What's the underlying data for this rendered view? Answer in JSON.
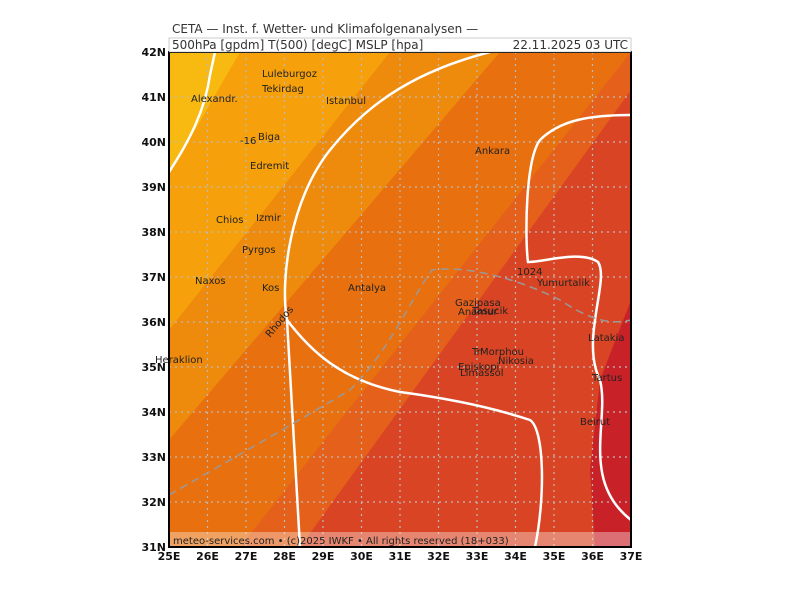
{
  "header": {
    "title": "CETA — Inst. f. Wetter- und Klimafolgenanalysen —",
    "subtitle": "500hPa [gpdm] T(500) [degC] MSLP [hpa]",
    "date": "22.11.2025 03 UTC"
  },
  "lon_labels": [
    "25E",
    "26E",
    "27E",
    "28E",
    "29E",
    "30E",
    "31E",
    "32E",
    "33E",
    "34E",
    "35E",
    "36E",
    "37E"
  ],
  "lat_labels": [
    "42N",
    "41N",
    "40N",
    "39N",
    "38N",
    "37N",
    "36N",
    "35N",
    "34N",
    "33N",
    "32N",
    "31N"
  ],
  "places": [
    "Luleburgoz",
    "Tekirdag",
    "Alexandr.",
    "Istanbul",
    "Biga",
    "Edremit",
    "Ankara",
    "Chios",
    "Izmir",
    "Pyrgos",
    "Yumurtalik",
    "Naxos",
    "Kos",
    "Antalya",
    "Gazipasa",
    "Anamur",
    "Tasucik",
    "Rhodos",
    "Latakia",
    "Heraklion",
    "Tr",
    "Morphou",
    "Nikosia",
    "Episkopi",
    "Limassol",
    "Tartus",
    "Beirut"
  ],
  "contour_labels": [
    "-16",
    "1024"
  ],
  "footer": "meteo-services.com • (c)2025 IWKF • All rights reserved (18+033)"
}
